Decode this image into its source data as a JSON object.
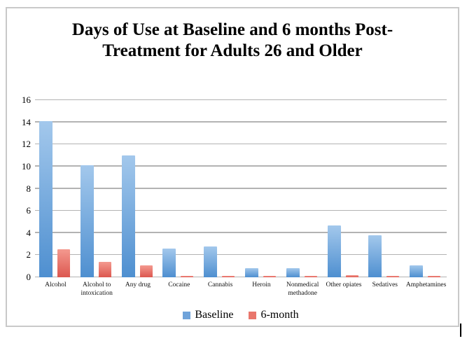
{
  "chart_data": {
    "type": "bar",
    "title": "Days of Use at Baseline and 6 months Post-Treatment for Adults 26 and Older",
    "categories": [
      "Alcohol",
      "Alcohol to intoxication",
      "Any drug",
      "Cocaine",
      "Cannabis",
      "Heroin",
      "Nonmedical methadone",
      "Other opiates",
      "Sedatives",
      "Amphetamines"
    ],
    "series": [
      {
        "name": "Baseline",
        "values": [
          14.1,
          10.1,
          11.0,
          2.6,
          2.8,
          0.8,
          0.8,
          4.7,
          3.8,
          1.1
        ],
        "bar_gradient_top": "#a3c8ec",
        "bar_gradient_bottom": "#4e8fd0",
        "legend_swatch_color": "#6fa3da"
      },
      {
        "name": "6-month",
        "values": [
          2.5,
          1.4,
          1.1,
          0.1,
          0.1,
          0.1,
          0.1,
          0.2,
          0.1,
          0.1
        ],
        "bar_gradient_top": "#f4998f",
        "bar_gradient_bottom": "#dc574f",
        "legend_swatch_color": "#e9766c"
      }
    ],
    "xlabel": "",
    "ylabel": "",
    "ylim": [
      0,
      16
    ],
    "yticks": [
      "0",
      "2",
      "4",
      "6",
      "8",
      "10",
      "12",
      "14",
      "16"
    ],
    "grid": true,
    "legend_position": "bottom",
    "gridline_color": "#b3b3b3",
    "frame_border_color": "#c9c9c9"
  }
}
